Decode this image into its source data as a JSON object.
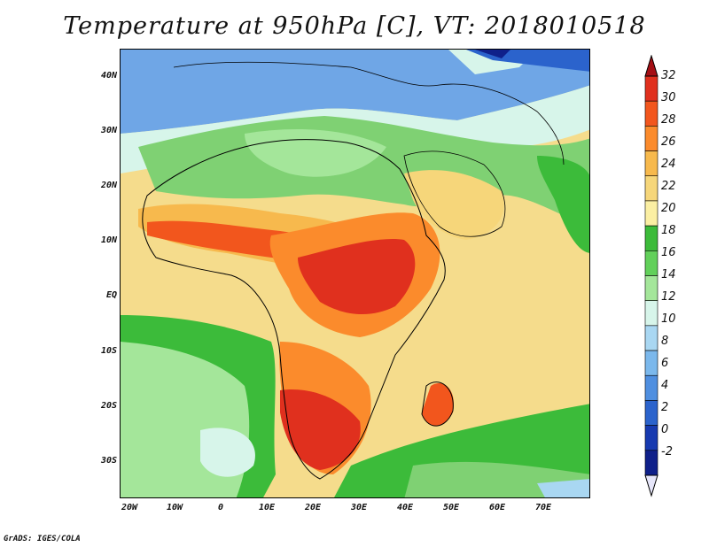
{
  "title": "Temperature at 950hPa [C], VT: 2018010518",
  "credit": "GrADS: IGES/COLA",
  "lat_axis": {
    "labels": [
      "40N",
      "30N",
      "20N",
      "10N",
      "EQ",
      "10S",
      "20S",
      "30S"
    ],
    "values": [
      40,
      30,
      20,
      10,
      0,
      -10,
      -20,
      -30
    ]
  },
  "lon_axis": {
    "labels": [
      "20W",
      "10W",
      "0",
      "10E",
      "20E",
      "30E",
      "40E",
      "50E",
      "60E",
      "70E"
    ],
    "values": [
      -20,
      -10,
      0,
      10,
      20,
      30,
      40,
      50,
      60,
      70
    ]
  },
  "colorbar": {
    "labels": [
      "32",
      "30",
      "28",
      "26",
      "24",
      "22",
      "20",
      "18",
      "16",
      "14",
      "12",
      "10",
      "8",
      "6",
      "4",
      "2",
      "0",
      "-2"
    ],
    "colors": [
      "#a50f15",
      "#e0301e",
      "#f2561d",
      "#fb8b2c",
      "#f7b94d",
      "#f6d67a",
      "#fbefa3",
      "#3cbb3a",
      "#62d05a",
      "#a4e69a",
      "#d7f5ea",
      "#a9d7f2",
      "#7bb8ec",
      "#4f8fe0",
      "#2b63cc",
      "#173ab0",
      "#0f208a",
      "#e6e6fa"
    ]
  }
}
